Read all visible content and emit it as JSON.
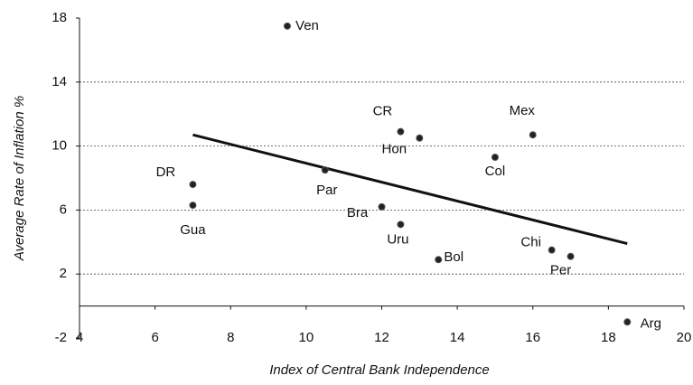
{
  "chart_data": {
    "type": "scatter",
    "xlabel": "Index of Central Bank Independence",
    "ylabel": "Average Rate of Inflation %",
    "labels": [
      "Ven",
      "CR",
      "Hon",
      "Mex",
      "Col",
      "DR",
      "Gua",
      "Par",
      "Bra",
      "Uru",
      "Bol",
      "Chi",
      "Per",
      "Arg"
    ],
    "x": [
      9.5,
      12.5,
      13,
      16,
      15,
      7,
      7,
      10.5,
      12,
      12.5,
      13.5,
      16.5,
      17,
      18.5
    ],
    "y": [
      17.5,
      10.9,
      10.5,
      10.7,
      9.3,
      7.6,
      6.3,
      8.5,
      6.2,
      5.1,
      2.9,
      3.5,
      3.1,
      -1.0
    ],
    "color": "#222222",
    "trend_line": {
      "x": [
        7,
        18.5
      ],
      "y": [
        10.7,
        3.9
      ]
    },
    "xlim": [
      4,
      20
    ],
    "xticks": [
      4,
      6,
      8,
      10,
      12,
      14,
      16,
      18,
      20
    ],
    "ylim": [
      -2,
      18
    ],
    "yticks": [
      -2,
      2,
      6,
      10,
      14,
      18
    ],
    "grid": true
  }
}
